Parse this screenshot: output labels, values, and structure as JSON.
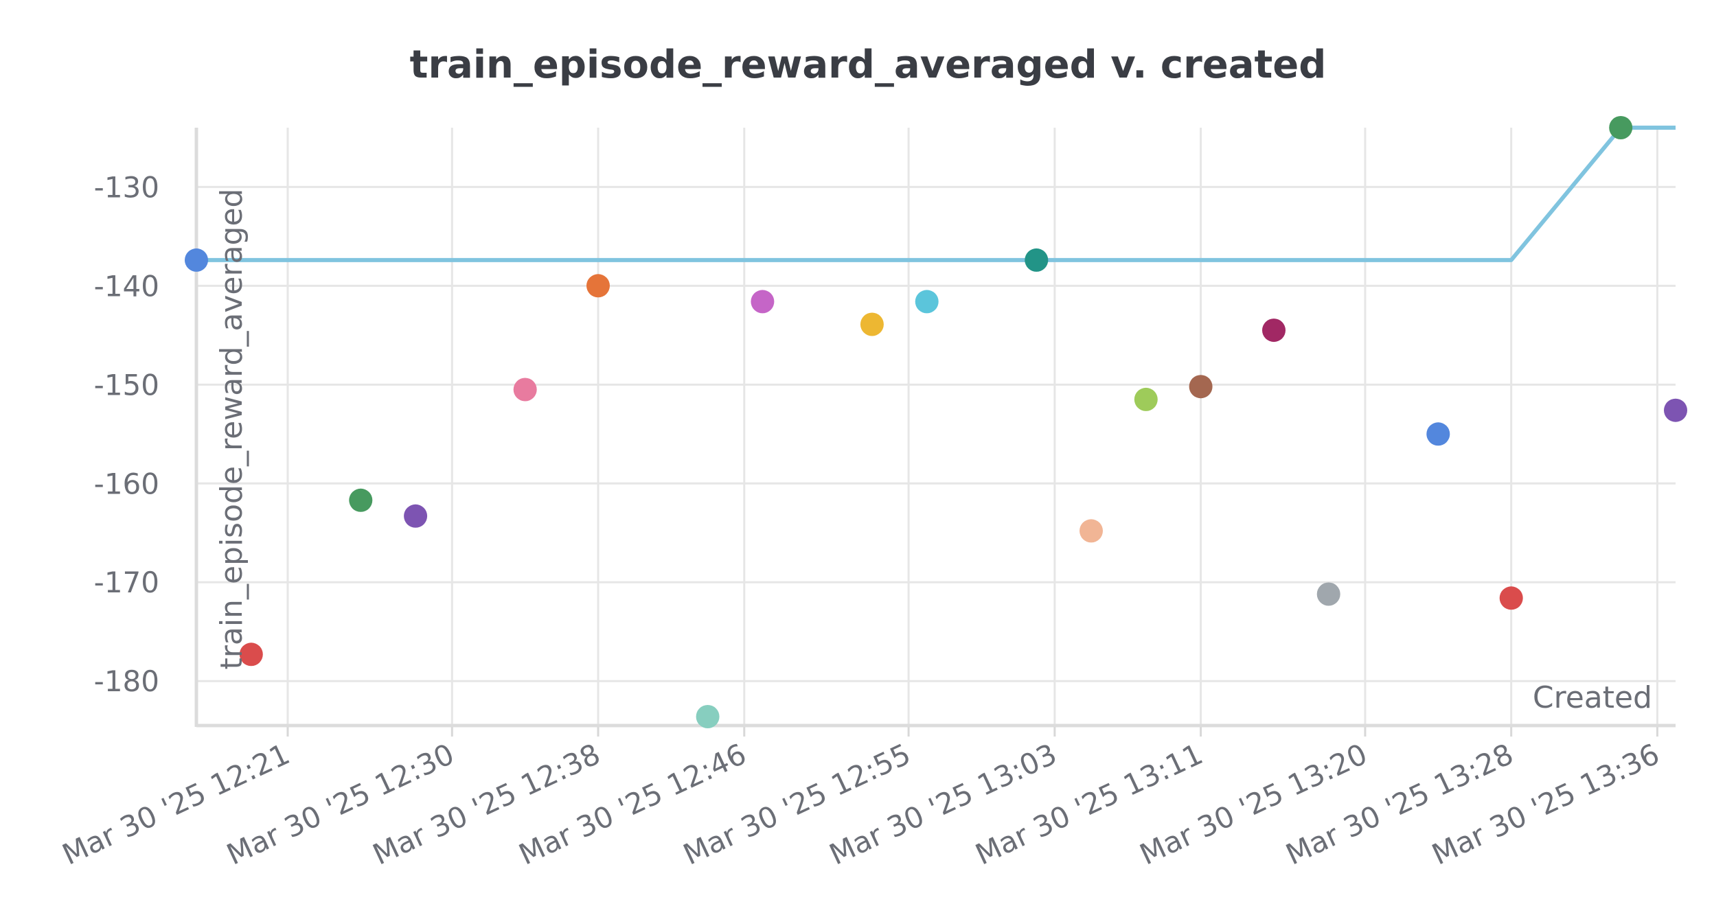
{
  "chart_data": {
    "type": "scatter",
    "title": "train_episode_reward_averaged v. created",
    "xlabel": "Created",
    "ylabel": "train_episode_reward_averaged",
    "x_ticks": [
      "Mar 30 '25 12:21",
      "Mar 30 '25 12:30",
      "Mar 30 '25 12:38",
      "Mar 30 '25 12:46",
      "Mar 30 '25 12:55",
      "Mar 30 '25 13:03",
      "Mar 30 '25 13:11",
      "Mar 30 '25 13:20",
      "Mar 30 '25 13:28",
      "Mar 30 '25 13:36"
    ],
    "y_ticks": [
      "-130",
      "-140",
      "-150",
      "-160",
      "-170",
      "-180"
    ],
    "xlim": [
      "2025-03-30 12:16",
      "2025-03-30 13:37"
    ],
    "ylim": [
      -184.5,
      -124
    ],
    "grid": true,
    "legend": "none",
    "series": [
      {
        "color": "#80c4df",
        "mode": "line",
        "points": [
          {
            "x": "2025-03-30 12:16",
            "y": -137.4
          },
          {
            "x": "2025-03-30 13:28",
            "y": -137.4
          },
          {
            "x": "2025-03-30 13:34",
            "y": -124.0
          },
          {
            "x": "2025-03-30 13:37",
            "y": -124.0
          }
        ]
      },
      {
        "mode": "markers",
        "points": [
          {
            "x": "2025-03-30 12:16",
            "y": -137.4,
            "color": "#5387dd"
          },
          {
            "x": "2025-03-30 12:19",
            "y": -177.3,
            "color": "#da4c4c"
          },
          {
            "x": "2025-03-30 12:25",
            "y": -161.7,
            "color": "#479a5f"
          },
          {
            "x": "2025-03-30 12:28",
            "y": -163.3,
            "color": "#7d54b2"
          },
          {
            "x": "2025-03-30 12:34",
            "y": -150.5,
            "color": "#e87b9f"
          },
          {
            "x": "2025-03-30 12:38",
            "y": -140.0,
            "color": "#e57439"
          },
          {
            "x": "2025-03-30 12:44",
            "y": -183.6,
            "color": "#87cebf"
          },
          {
            "x": "2025-03-30 12:47",
            "y": -141.6,
            "color": "#c565c7"
          },
          {
            "x": "2025-03-30 12:53",
            "y": -143.9,
            "color": "#edb732"
          },
          {
            "x": "2025-03-30 12:56",
            "y": -141.6,
            "color": "#5bc5db"
          },
          {
            "x": "2025-03-30 13:02",
            "y": -137.4,
            "color": "#229487"
          },
          {
            "x": "2025-03-30 13:05",
            "y": -164.8,
            "color": "#f1b595"
          },
          {
            "x": "2025-03-30 13:08",
            "y": -151.5,
            "color": "#9ecb5a"
          },
          {
            "x": "2025-03-30 13:11",
            "y": -150.2,
            "color": "#a46750"
          },
          {
            "x": "2025-03-30 13:15",
            "y": -144.5,
            "color": "#a12864"
          },
          {
            "x": "2025-03-30 13:18",
            "y": -171.2,
            "color": "#a0a7ad"
          },
          {
            "x": "2025-03-30 13:24",
            "y": -155.0,
            "color": "#5387dd"
          },
          {
            "x": "2025-03-30 13:28",
            "y": -171.6,
            "color": "#da4c4c"
          },
          {
            "x": "2025-03-30 13:34",
            "y": -124.0,
            "color": "#479a5f"
          },
          {
            "x": "2025-03-30 13:37",
            "y": -152.6,
            "color": "#7d54b2"
          }
        ]
      }
    ]
  }
}
